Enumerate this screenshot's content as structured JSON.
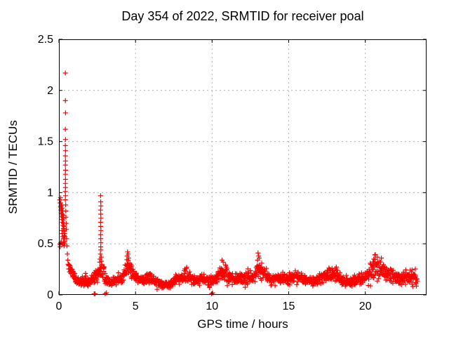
{
  "title": "Day 354 of 2022, SRMTID for receiver poal",
  "chart_data": {
    "type": "scatter",
    "title": "Day 354 of 2022, SRMTID for receiver poal",
    "xlabel": "GPS time / hours",
    "ylabel": "SRMTID / TECUs",
    "xlim": [
      0,
      24
    ],
    "ylim": [
      0,
      2.5
    ],
    "xticks": [
      0,
      5,
      10,
      15,
      20
    ],
    "xtick_labels": [
      "0",
      "5",
      "10",
      "15",
      "20"
    ],
    "yticks": [
      0,
      0.5,
      1,
      1.5,
      2,
      2.5
    ],
    "ytick_labels": [
      "0",
      "0.5",
      "1",
      "1.5",
      "2",
      "2.5"
    ],
    "grid_x": [
      5,
      10,
      15,
      20
    ],
    "grid_y": [
      0.5,
      1,
      1.5,
      2
    ],
    "grid_on": true,
    "legend": "none",
    "marker": "plus",
    "marker_size_px": 7,
    "series_name": "SRMTID",
    "colors": {
      "points": "#ff0000",
      "grid": "#b0b0b0",
      "axis": "#000000",
      "background": "#ffffff"
    },
    "explicit_points": [
      [
        0.42,
        2.17
      ],
      [
        0.42,
        1.9
      ],
      [
        0.43,
        1.78
      ],
      [
        0.42,
        1.62
      ],
      [
        0.43,
        1.52
      ],
      [
        0.42,
        1.46
      ],
      [
        0.43,
        1.41
      ],
      [
        0.42,
        1.36
      ],
      [
        0.43,
        1.31
      ],
      [
        0.42,
        1.27
      ],
      [
        0.43,
        1.22
      ],
      [
        0.42,
        1.18
      ],
      [
        0.43,
        1.13
      ],
      [
        0.42,
        1.09
      ],
      [
        0.43,
        1.05
      ],
      [
        0.42,
        1.01
      ],
      [
        0.43,
        0.97
      ],
      [
        0.42,
        0.93
      ],
      [
        0.44,
        0.88
      ],
      [
        0.45,
        0.82
      ],
      [
        0.46,
        0.76
      ],
      [
        0.47,
        0.7
      ],
      [
        0.48,
        0.64
      ],
      [
        0.5,
        0.55
      ],
      [
        0.52,
        0.48
      ],
      [
        0.55,
        0.4
      ],
      [
        0.58,
        0.34
      ],
      [
        0.6,
        0.3
      ],
      [
        0.06,
        0.93
      ],
      [
        0.08,
        0.9
      ],
      [
        0.1,
        0.95
      ],
      [
        0.1,
        0.86
      ],
      [
        0.12,
        0.9
      ],
      [
        0.13,
        0.83
      ],
      [
        0.14,
        0.87
      ],
      [
        0.15,
        0.8
      ],
      [
        0.16,
        0.84
      ],
      [
        0.17,
        0.77
      ],
      [
        0.18,
        0.82
      ],
      [
        0.19,
        0.88
      ],
      [
        0.2,
        0.74
      ],
      [
        0.21,
        0.79
      ],
      [
        0.22,
        0.85
      ],
      [
        0.23,
        0.71
      ],
      [
        0.24,
        0.76
      ],
      [
        0.25,
        0.82
      ],
      [
        0.26,
        0.68
      ],
      [
        0.27,
        0.73
      ],
      [
        0.28,
        0.78
      ],
      [
        0.29,
        0.65
      ],
      [
        0.3,
        0.7
      ],
      [
        0.31,
        0.75
      ],
      [
        0.32,
        0.62
      ],
      [
        0.33,
        0.67
      ],
      [
        0.34,
        0.58
      ],
      [
        0.35,
        0.63
      ],
      [
        0.36,
        0.55
      ],
      [
        0.37,
        0.6
      ],
      [
        0.38,
        0.52
      ],
      [
        0.39,
        0.57
      ],
      [
        0.4,
        0.5
      ],
      [
        0.3,
        0.52
      ],
      [
        0.32,
        0.5
      ],
      [
        0.28,
        0.55
      ],
      [
        0.26,
        0.5
      ],
      [
        0.22,
        0.6
      ],
      [
        0.24,
        0.57
      ],
      [
        0.2,
        0.63
      ],
      [
        0.34,
        0.48
      ],
      [
        0.15,
        0.52
      ],
      [
        0.06,
        0.5
      ],
      [
        0.09,
        0.49
      ],
      [
        0.12,
        0.51
      ],
      [
        0.08,
        0.47
      ],
      [
        2.72,
        0.97
      ],
      [
        2.73,
        0.91
      ],
      [
        2.74,
        0.87
      ],
      [
        2.72,
        0.83
      ],
      [
        2.73,
        0.79
      ],
      [
        2.74,
        0.75
      ],
      [
        2.72,
        0.71
      ],
      [
        2.73,
        0.67
      ],
      [
        2.74,
        0.63
      ],
      [
        2.72,
        0.59
      ],
      [
        2.73,
        0.55
      ],
      [
        2.74,
        0.51
      ],
      [
        2.73,
        0.47
      ],
      [
        2.74,
        0.44
      ],
      [
        2.7,
        0.4
      ],
      [
        2.76,
        0.37
      ],
      [
        2.68,
        0.35
      ],
      [
        2.78,
        0.33
      ],
      [
        2.66,
        0.32
      ],
      [
        2.8,
        0.3
      ],
      [
        4.45,
        0.38
      ],
      [
        4.48,
        0.42
      ],
      [
        4.52,
        0.4
      ],
      [
        4.55,
        0.36
      ],
      [
        10.65,
        0.34
      ],
      [
        10.72,
        0.32
      ],
      [
        13.0,
        0.41
      ],
      [
        13.04,
        0.38
      ],
      [
        13.07,
        0.36
      ],
      [
        12.97,
        0.34
      ],
      [
        20.55,
        0.35
      ],
      [
        20.62,
        0.39
      ],
      [
        20.78,
        0.37
      ],
      [
        21.05,
        0.36
      ],
      [
        2.3,
        0.01
      ],
      [
        2.36,
        0.01
      ],
      [
        3.02,
        0.01
      ],
      [
        3.1,
        0.02
      ],
      [
        9.97,
        0.01
      ],
      [
        10.03,
        0.02
      ]
    ],
    "band_envelope": {
      "x_start": 0.62,
      "x_end": 23.4,
      "control_points": [
        [
          0.62,
          0.3,
          0.05
        ],
        [
          0.8,
          0.24,
          0.06
        ],
        [
          1.0,
          0.17,
          0.05
        ],
        [
          1.2,
          0.13,
          0.05
        ],
        [
          1.5,
          0.13,
          0.06
        ],
        [
          1.7,
          0.15,
          0.07
        ],
        [
          1.9,
          0.12,
          0.05
        ],
        [
          2.1,
          0.15,
          0.06
        ],
        [
          2.4,
          0.19,
          0.07
        ],
        [
          2.6,
          0.2,
          0.08
        ],
        [
          2.9,
          0.22,
          0.09
        ],
        [
          3.1,
          0.14,
          0.06
        ],
        [
          3.4,
          0.12,
          0.05
        ],
        [
          3.7,
          0.13,
          0.05
        ],
        [
          4.0,
          0.15,
          0.06
        ],
        [
          4.3,
          0.22,
          0.08
        ],
        [
          4.5,
          0.3,
          0.1
        ],
        [
          4.7,
          0.24,
          0.08
        ],
        [
          5.0,
          0.17,
          0.06
        ],
        [
          5.3,
          0.15,
          0.05
        ],
        [
          5.6,
          0.16,
          0.06
        ],
        [
          5.9,
          0.18,
          0.07
        ],
        [
          6.2,
          0.14,
          0.05
        ],
        [
          6.5,
          0.12,
          0.05
        ],
        [
          6.8,
          0.1,
          0.04
        ],
        [
          7.1,
          0.09,
          0.04
        ],
        [
          7.4,
          0.12,
          0.05
        ],
        [
          7.7,
          0.15,
          0.06
        ],
        [
          8.0,
          0.17,
          0.07
        ],
        [
          8.3,
          0.19,
          0.08
        ],
        [
          8.6,
          0.16,
          0.06
        ],
        [
          9.0,
          0.14,
          0.05
        ],
        [
          9.4,
          0.16,
          0.06
        ],
        [
          9.8,
          0.13,
          0.05
        ],
        [
          10.2,
          0.16,
          0.06
        ],
        [
          10.5,
          0.21,
          0.08
        ],
        [
          10.8,
          0.23,
          0.09
        ],
        [
          11.1,
          0.18,
          0.07
        ],
        [
          11.5,
          0.15,
          0.06
        ],
        [
          11.9,
          0.17,
          0.06
        ],
        [
          12.3,
          0.17,
          0.07
        ],
        [
          12.7,
          0.18,
          0.07
        ],
        [
          13.0,
          0.26,
          0.11
        ],
        [
          13.2,
          0.24,
          0.1
        ],
        [
          13.5,
          0.18,
          0.07
        ],
        [
          14.0,
          0.15,
          0.06
        ],
        [
          14.5,
          0.17,
          0.06
        ],
        [
          15.0,
          0.16,
          0.06
        ],
        [
          15.5,
          0.18,
          0.07
        ],
        [
          16.0,
          0.15,
          0.06
        ],
        [
          16.5,
          0.14,
          0.05
        ],
        [
          17.0,
          0.16,
          0.06
        ],
        [
          17.5,
          0.19,
          0.07
        ],
        [
          17.9,
          0.22,
          0.08
        ],
        [
          18.3,
          0.17,
          0.07
        ],
        [
          18.7,
          0.12,
          0.05
        ],
        [
          19.1,
          0.12,
          0.05
        ],
        [
          19.5,
          0.15,
          0.06
        ],
        [
          19.9,
          0.16,
          0.06
        ],
        [
          20.3,
          0.23,
          0.09
        ],
        [
          20.7,
          0.27,
          0.1
        ],
        [
          21.1,
          0.25,
          0.09
        ],
        [
          21.5,
          0.19,
          0.08
        ],
        [
          21.9,
          0.19,
          0.08
        ],
        [
          22.3,
          0.16,
          0.07
        ],
        [
          22.7,
          0.18,
          0.09
        ],
        [
          23.0,
          0.16,
          0.09
        ],
        [
          23.2,
          0.17,
          0.08
        ],
        [
          23.4,
          0.13,
          0.07
        ]
      ]
    },
    "render": {
      "seed": 20221354,
      "points_per_hour": 62,
      "outlier_fraction": 0.12,
      "outlier_scale": 1.7,
      "x_jitter": 0.012,
      "y_min_clamp": 0.03,
      "y_max_clamp": 2.45
    }
  }
}
